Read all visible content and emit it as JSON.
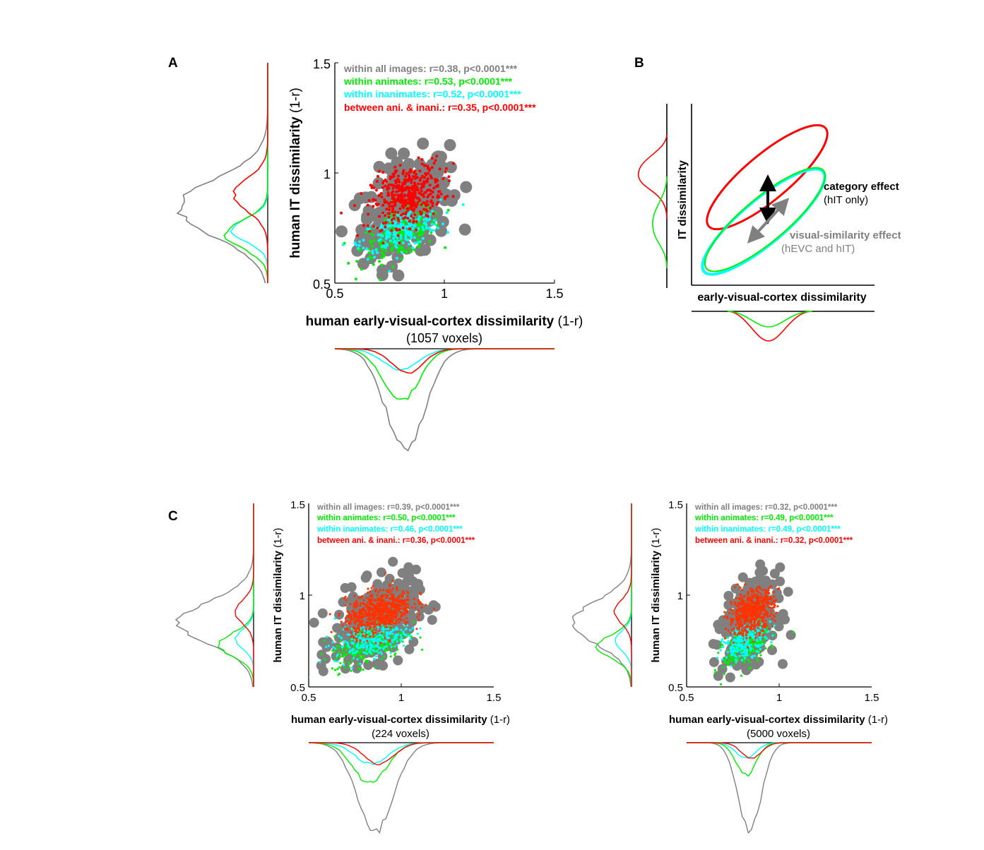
{
  "panel_labels": {
    "a": "A",
    "b": "B",
    "c": "C"
  },
  "colors": {
    "all": "#808080",
    "animate": "#00ee00",
    "inanimate": "#00ffff",
    "between": "#ff0000",
    "between_dense": "#ff3300",
    "arrow_category": "#000000",
    "arrow_visual": "#808080"
  },
  "chart_data": [
    {
      "type": "scatter",
      "panel": "A",
      "xlabel": "human early-visual-cortex dissimilarity",
      "xlabel_unit": " (1-r)",
      "voxels": "(1057 voxels)",
      "ylabel": "human IT dissimilarity",
      "ylabel_unit": " (1-r)",
      "xlim": [
        0.5,
        1.5
      ],
      "ylim": [
        0.5,
        1.5
      ],
      "xticks": [
        "0.5",
        "1",
        "1.5"
      ],
      "yticks": [
        "0.5",
        "1",
        "1.5"
      ],
      "stats": [
        {
          "key": "all",
          "label": "within all images: r=0.38, p<0.0001***"
        },
        {
          "key": "animate",
          "label": "within animates: r=0.53, p<0.0001***"
        },
        {
          "key": "inanimate",
          "label": "within inanimates: r=0.52, p<0.0001***"
        },
        {
          "key": "between",
          "label": "between ani. & inani.: r=0.35, p<0.0001***"
        }
      ],
      "series": [
        {
          "key": "all",
          "x_mean": 0.82,
          "x_sd": 0.1,
          "y_mean": 0.84,
          "y_sd": 0.12,
          "r": 0.38
        },
        {
          "key": "animate",
          "x_mean": 0.8,
          "x_sd": 0.09,
          "y_mean": 0.72,
          "y_sd": 0.06,
          "r": 0.53
        },
        {
          "key": "inanimate",
          "x_mean": 0.8,
          "x_sd": 0.09,
          "y_mean": 0.74,
          "y_sd": 0.05,
          "r": 0.52
        },
        {
          "key": "between",
          "x_mean": 0.83,
          "x_sd": 0.08,
          "y_mean": 0.9,
          "y_sd": 0.07,
          "r": 0.35
        }
      ]
    },
    {
      "type": "scatter",
      "panel": "C-left",
      "xlabel": "human early-visual-cortex dissimilarity",
      "xlabel_unit": " (1-r)",
      "voxels": "(224 voxels)",
      "ylabel": "human IT dissimilarity",
      "ylabel_unit": " (1-r)",
      "xlim": [
        0.5,
        1.5
      ],
      "ylim": [
        0.5,
        1.5
      ],
      "xticks": [
        "0.5",
        "1",
        "1.5"
      ],
      "yticks": [
        "0.5",
        "1",
        "1.5"
      ],
      "stats": [
        {
          "key": "all",
          "label": "within all images: r=0.39, p<0.0001***"
        },
        {
          "key": "animate",
          "label": "within animates: r=0.50, p<0.0001***"
        },
        {
          "key": "inanimate",
          "label": "within inanimates: r=0.46, p<0.0001***"
        },
        {
          "key": "between",
          "label": "between ani. & inani.: r=0.36, p<0.0001***"
        }
      ],
      "series": [
        {
          "key": "all",
          "x_mean": 0.86,
          "x_sd": 0.11,
          "y_mean": 0.85,
          "y_sd": 0.11,
          "r": 0.39
        },
        {
          "key": "animate",
          "x_mean": 0.83,
          "x_sd": 0.1,
          "y_mean": 0.73,
          "y_sd": 0.06,
          "r": 0.5
        },
        {
          "key": "inanimate",
          "x_mean": 0.84,
          "x_sd": 0.1,
          "y_mean": 0.76,
          "y_sd": 0.05,
          "r": 0.46
        },
        {
          "key": "between",
          "x_mean": 0.88,
          "x_sd": 0.09,
          "y_mean": 0.91,
          "y_sd": 0.06,
          "r": 0.36
        }
      ]
    },
    {
      "type": "scatter",
      "panel": "C-right",
      "xlabel": "human early-visual-cortex dissimilarity",
      "xlabel_unit": " (1-r)",
      "voxels": "(5000 voxels)",
      "ylabel": "human IT dissimilarity",
      "ylabel_unit": " (1-r)",
      "xlim": [
        0.5,
        1.5
      ],
      "ylim": [
        0.5,
        1.5
      ],
      "xticks": [
        "0.5",
        "1",
        "1.5"
      ],
      "yticks": [
        "0.5",
        "1",
        "1.5"
      ],
      "stats": [
        {
          "key": "all",
          "label": "within all images: r=0.32, p<0.0001***"
        },
        {
          "key": "animate",
          "label": "within animates: r=0.49, p<0.0001***"
        },
        {
          "key": "inanimate",
          "label": "within inanimates: r=0.49, p<0.0001***"
        },
        {
          "key": "between",
          "label": "between ani. & inani.: r=0.32, p<0.0001***"
        }
      ],
      "series": [
        {
          "key": "all",
          "x_mean": 0.84,
          "x_sd": 0.07,
          "y_mean": 0.85,
          "y_sd": 0.11,
          "r": 0.32
        },
        {
          "key": "animate",
          "x_mean": 0.82,
          "x_sd": 0.06,
          "y_mean": 0.72,
          "y_sd": 0.06,
          "r": 0.49
        },
        {
          "key": "inanimate",
          "x_mean": 0.82,
          "x_sd": 0.06,
          "y_mean": 0.75,
          "y_sd": 0.05,
          "r": 0.49
        },
        {
          "key": "between",
          "x_mean": 0.85,
          "x_sd": 0.06,
          "y_mean": 0.91,
          "y_sd": 0.06,
          "r": 0.32
        }
      ]
    }
  ],
  "schematic": {
    "panel": "B",
    "xlabel": "early-visual-cortex dissimilarity",
    "ylabel": "IT dissimilarity",
    "category_effect": "category effect",
    "category_effect_note": "(hIT only)",
    "visual_effect": "visual-similarity effect",
    "visual_effect_note": "(hEVC and hIT)"
  }
}
